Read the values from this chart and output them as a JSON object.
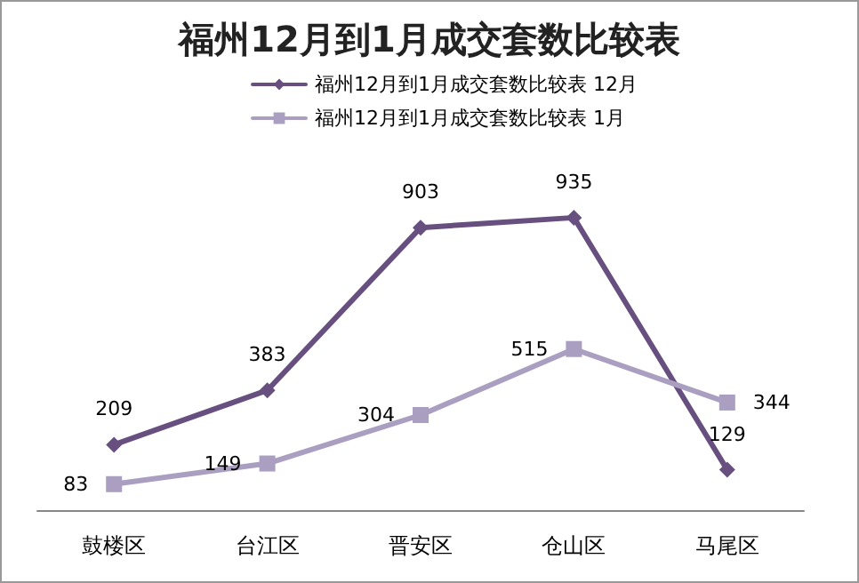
{
  "chart_data": {
    "type": "line",
    "title": "福州12月到1月成交套数比较表",
    "categories": [
      "鼓楼区",
      "台江区",
      "晋安区",
      "仓山区",
      "马尾区"
    ],
    "series": [
      {
        "name": "福州12月到1月成交套数比较表 12月",
        "color": "#67507f",
        "values": [
          209,
          383,
          903,
          935,
          129
        ],
        "marker": "diamond"
      },
      {
        "name": "福州12月到1月成交套数比较表 1月",
        "color": "#aa9fc0",
        "values": [
          83,
          149,
          304,
          515,
          344
        ],
        "marker": "square"
      }
    ],
    "data_labels": true,
    "legend": "top",
    "grid": false,
    "line_style": "solid"
  }
}
